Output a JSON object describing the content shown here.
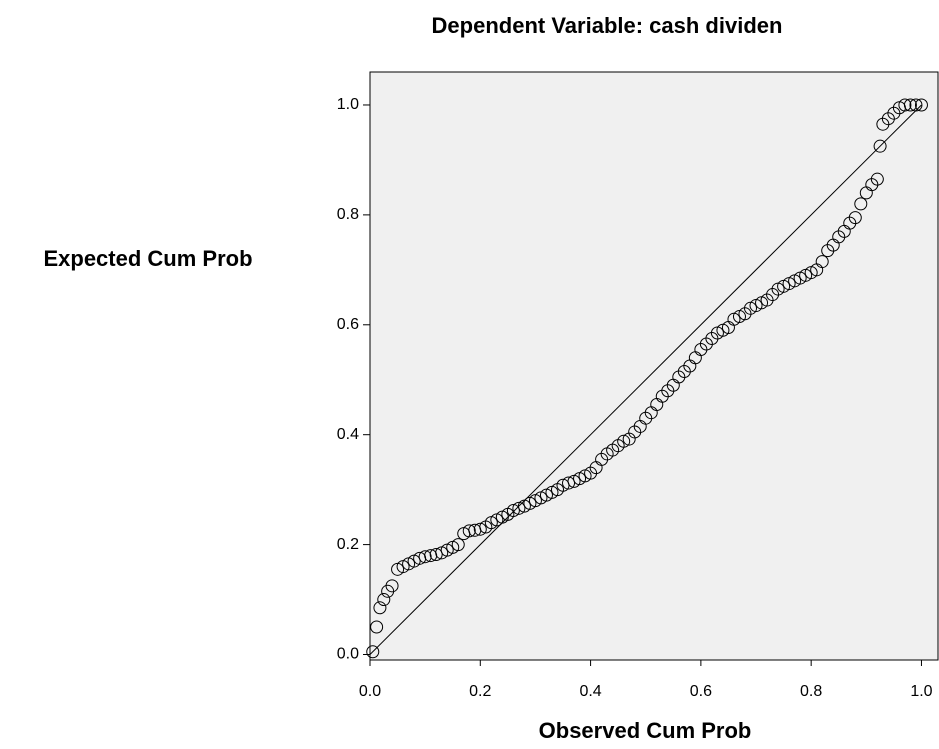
{
  "chart_data": {
    "type": "scatter",
    "title": "Dependent Variable: cash dividen",
    "x_label": "Observed Cum Prob",
    "y_label": "Expected Cum Prob",
    "xlim": [
      0,
      1.03
    ],
    "ylim": [
      -0.01,
      1.06
    ],
    "xticks": [
      {
        "value": 0,
        "label": "0.0"
      },
      0.2,
      0.4,
      0.6,
      0.8,
      {
        "value": 1,
        "label": "1.0"
      }
    ],
    "yticks": [
      {
        "value": 0,
        "label": "0.0"
      },
      0.2,
      0.4,
      0.6,
      0.8,
      {
        "value": 1,
        "label": "1.0"
      }
    ],
    "color": "#000000",
    "background": "#f0f0f0",
    "reference_line": {
      "x": [
        0,
        1
      ],
      "y": [
        0,
        1
      ]
    },
    "series": [
      {
        "x": [
          0.005,
          0.012,
          0.018,
          0.025,
          0.032,
          0.04,
          0.05,
          0.06,
          0.07,
          0.08,
          0.09,
          0.1,
          0.11,
          0.12,
          0.13,
          0.14,
          0.15,
          0.16,
          0.17,
          0.18,
          0.19,
          0.2,
          0.21,
          0.22,
          0.23,
          0.24,
          0.25,
          0.26,
          0.27,
          0.28,
          0.29,
          0.3,
          0.31,
          0.32,
          0.33,
          0.34,
          0.35,
          0.36,
          0.37,
          0.38,
          0.39,
          0.4,
          0.41,
          0.42,
          0.43,
          0.44,
          0.45,
          0.46,
          0.47,
          0.48,
          0.49,
          0.5,
          0.51,
          0.52,
          0.53,
          0.54,
          0.55,
          0.56,
          0.57,
          0.58,
          0.59,
          0.6,
          0.61,
          0.62,
          0.63,
          0.64,
          0.65,
          0.66,
          0.67,
          0.68,
          0.69,
          0.7,
          0.71,
          0.72,
          0.73,
          0.74,
          0.75,
          0.76,
          0.77,
          0.78,
          0.79,
          0.8,
          0.81,
          0.82,
          0.83,
          0.84,
          0.85,
          0.86,
          0.87,
          0.88,
          0.89,
          0.9,
          0.91,
          0.92,
          0.925,
          0.93,
          0.94,
          0.95,
          0.96,
          0.97,
          0.98,
          0.99,
          1.0
        ],
        "values": [
          0.005,
          0.05,
          0.085,
          0.1,
          0.115,
          0.125,
          0.155,
          0.16,
          0.165,
          0.17,
          0.175,
          0.178,
          0.18,
          0.182,
          0.185,
          0.19,
          0.195,
          0.2,
          0.22,
          0.225,
          0.226,
          0.228,
          0.232,
          0.24,
          0.245,
          0.25,
          0.255,
          0.262,
          0.266,
          0.27,
          0.275,
          0.28,
          0.285,
          0.29,
          0.295,
          0.3,
          0.308,
          0.312,
          0.315,
          0.32,
          0.325,
          0.33,
          0.34,
          0.355,
          0.365,
          0.372,
          0.38,
          0.388,
          0.392,
          0.405,
          0.415,
          0.43,
          0.44,
          0.455,
          0.47,
          0.48,
          0.49,
          0.505,
          0.515,
          0.525,
          0.54,
          0.555,
          0.565,
          0.575,
          0.585,
          0.59,
          0.595,
          0.61,
          0.615,
          0.62,
          0.63,
          0.635,
          0.64,
          0.645,
          0.655,
          0.665,
          0.67,
          0.675,
          0.68,
          0.685,
          0.69,
          0.695,
          0.7,
          0.715,
          0.735,
          0.745,
          0.76,
          0.77,
          0.785,
          0.795,
          0.82,
          0.84,
          0.855,
          0.865,
          0.925,
          0.965,
          0.975,
          0.985,
          0.995,
          1.0,
          1.0,
          1.0,
          1.0
        ]
      }
    ]
  }
}
